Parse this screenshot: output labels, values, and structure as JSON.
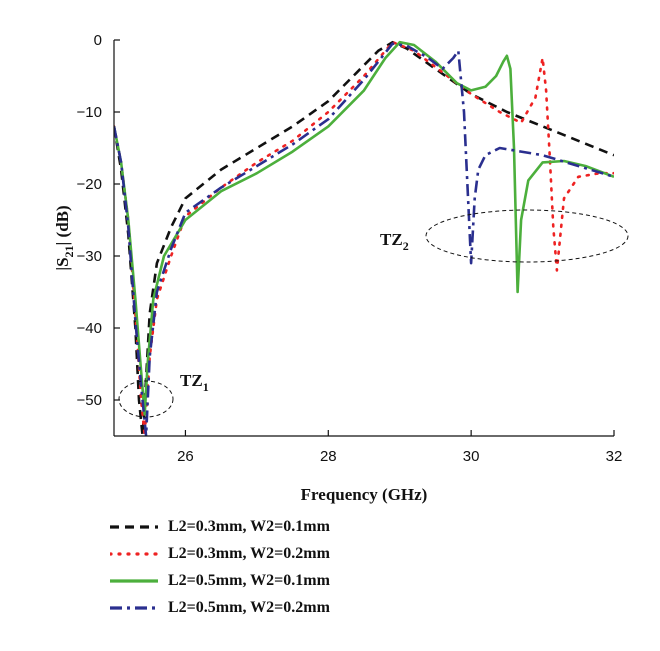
{
  "chart_data": {
    "type": "line",
    "title": "",
    "xlabel": "Frequency (GHz)",
    "ylabel_main": "|S",
    "ylabel_sub": "21",
    "ylabel_tail": "| (dB)",
    "xlim": [
      25,
      32
    ],
    "ylim": [
      -55,
      0
    ],
    "x_ticks": [
      26,
      28,
      30,
      32
    ],
    "y_ticks": [
      0,
      -10,
      -20,
      -30,
      -40,
      -50
    ],
    "grid": false,
    "legend_position": "bottom",
    "annotations": [
      {
        "label": "TZ",
        "sub": "1"
      },
      {
        "label": "TZ",
        "sub": "2"
      }
    ],
    "series": [
      {
        "name": "L2=0.3mm, W2=0.1mm",
        "color": "#111111",
        "style": "dash",
        "x": [
          25.0,
          25.1,
          25.2,
          25.3,
          25.35,
          25.4,
          25.45,
          25.5,
          25.6,
          25.8,
          26.0,
          26.5,
          27.0,
          27.5,
          28.0,
          28.4,
          28.7,
          28.9,
          29.1,
          29.5,
          30.0,
          30.5,
          31.0,
          31.5,
          32.0
        ],
        "y": [
          -12,
          -18,
          -27,
          -40,
          -50,
          -55,
          -47,
          -38,
          -31,
          -26,
          -22,
          -18,
          -15,
          -12,
          -8.5,
          -4.5,
          -1.5,
          -0.3,
          -1.2,
          -4,
          -7.5,
          -10,
          -12,
          -14,
          -16
        ]
      },
      {
        "name": "L2=0.3mm, W2=0.2mm",
        "color": "#ee2222",
        "style": "dot",
        "x": [
          25.0,
          25.1,
          25.2,
          25.3,
          25.38,
          25.43,
          25.5,
          25.6,
          25.8,
          26.0,
          26.5,
          27.0,
          27.5,
          28.0,
          28.5,
          28.9,
          29.2,
          29.6,
          30.0,
          30.4,
          30.7,
          30.9,
          31.0,
          31.05,
          31.1,
          31.15,
          31.2,
          31.3,
          31.5,
          31.8,
          32.0
        ],
        "y": [
          -12,
          -17,
          -25,
          -38,
          -50,
          -55,
          -44,
          -36,
          -30,
          -24.5,
          -20.5,
          -17,
          -14,
          -10,
          -5,
          -0.3,
          -1.5,
          -4.5,
          -7.5,
          -10,
          -11.5,
          -8,
          -2.5,
          -7,
          -16,
          -26,
          -32,
          -22,
          -19,
          -18.5,
          -18.5
        ]
      },
      {
        "name": "L2=0.5mm, W2=0.1mm",
        "color": "#4caf3c",
        "style": "solid",
        "x": [
          25.0,
          25.1,
          25.2,
          25.3,
          25.38,
          25.43,
          25.47,
          25.55,
          25.7,
          26.0,
          26.5,
          27.0,
          27.5,
          28.0,
          28.5,
          28.8,
          29.0,
          29.2,
          29.5,
          29.8,
          30.0,
          30.2,
          30.35,
          30.45,
          30.5,
          30.55,
          30.6,
          30.65,
          30.7,
          30.8,
          31.0,
          31.3,
          31.6,
          32.0
        ],
        "y": [
          -12,
          -17,
          -25,
          -36,
          -46,
          -52,
          -45,
          -36,
          -30,
          -25,
          -21,
          -18.5,
          -15.5,
          -12,
          -7,
          -2.5,
          -0.3,
          -0.7,
          -3,
          -6,
          -7,
          -6.5,
          -5,
          -3,
          -2.2,
          -4,
          -15,
          -35,
          -25,
          -19.5,
          -17,
          -16.8,
          -17.5,
          -19
        ]
      },
      {
        "name": "L2=0.5mm, W2=0.2mm",
        "color": "#2a2f8f",
        "style": "dashdot",
        "x": [
          25.0,
          25.1,
          25.2,
          25.3,
          25.38,
          25.45,
          25.5,
          25.6,
          25.8,
          26.0,
          26.5,
          27.0,
          27.5,
          28.0,
          28.5,
          28.9,
          29.1,
          29.4,
          29.6,
          29.75,
          29.82,
          29.9,
          30.0,
          30.05,
          30.1,
          30.2,
          30.4,
          30.7,
          31.0,
          31.5,
          32.0
        ],
        "y": [
          -12,
          -17,
          -26,
          -39,
          -48,
          -55,
          -44,
          -35,
          -29,
          -24,
          -20.5,
          -17.5,
          -14.5,
          -11,
          -5.5,
          -0.5,
          -0.8,
          -2.5,
          -4,
          -2.5,
          -1.5,
          -10,
          -31,
          -22,
          -18,
          -16,
          -15,
          -15.5,
          -16,
          -17.5,
          -19
        ]
      }
    ]
  }
}
